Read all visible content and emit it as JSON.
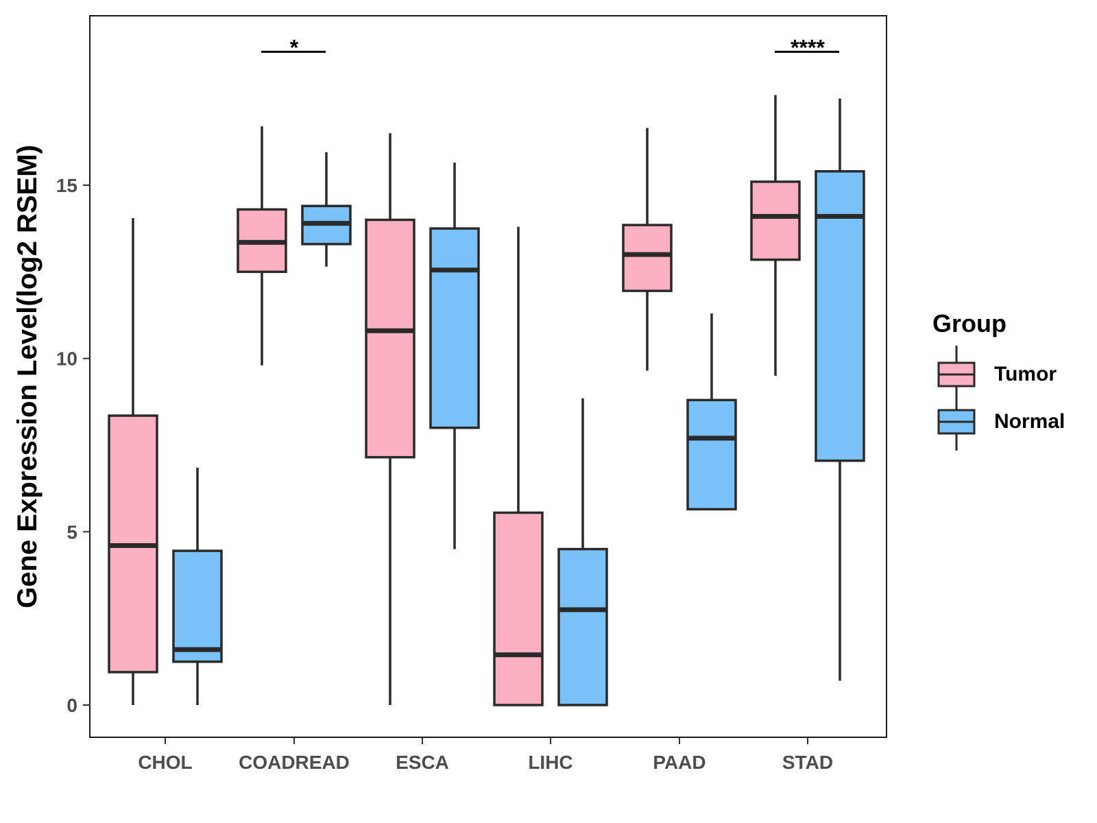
{
  "chart_data": {
    "type": "boxplot",
    "title": "",
    "xlabel": "",
    "ylabel": "Gene Expression Level(log2 RSEM)",
    "ylim": [
      -0.9,
      19.9
    ],
    "yticks": [
      0,
      5,
      10,
      15
    ],
    "grid": false,
    "categories": [
      "CHOL",
      "COADREAD",
      "ESCA",
      "LIHC",
      "PAAD",
      "STAD"
    ],
    "legend": {
      "title": "Group",
      "position": "right",
      "entries": [
        "Tumor",
        "Normal"
      ]
    },
    "colors": {
      "Tumor": "#FBB0C2",
      "Normal": "#79C1F8",
      "outline": "#2a2a2a"
    },
    "series": [
      {
        "name": "Tumor",
        "boxes": [
          {
            "category": "CHOL",
            "min": 0.0,
            "q1": 0.95,
            "median": 4.6,
            "q3": 8.35,
            "max": 14.05
          },
          {
            "category": "COADREAD",
            "min": 9.8,
            "q1": 12.5,
            "median": 13.35,
            "q3": 14.3,
            "max": 16.7
          },
          {
            "category": "ESCA",
            "min": 0.0,
            "q1": 7.15,
            "median": 10.8,
            "q3": 14.0,
            "max": 16.5
          },
          {
            "category": "LIHC",
            "min": 0.0,
            "q1": 0.0,
            "median": 1.45,
            "q3": 5.55,
            "max": 13.8
          },
          {
            "category": "PAAD",
            "min": 9.65,
            "q1": 11.95,
            "median": 13.0,
            "q3": 13.85,
            "max": 16.65
          },
          {
            "category": "STAD",
            "min": 9.5,
            "q1": 12.85,
            "median": 14.1,
            "q3": 15.1,
            "max": 17.6
          }
        ]
      },
      {
        "name": "Normal",
        "boxes": [
          {
            "category": "CHOL",
            "min": 0.0,
            "q1": 1.25,
            "median": 1.6,
            "q3": 4.45,
            "max": 6.85
          },
          {
            "category": "COADREAD",
            "min": 12.65,
            "q1": 13.3,
            "median": 13.9,
            "q3": 14.4,
            "max": 15.95
          },
          {
            "category": "ESCA",
            "min": 4.5,
            "q1": 8.0,
            "median": 12.55,
            "q3": 13.75,
            "max": 15.65
          },
          {
            "category": "LIHC",
            "min": 0.0,
            "q1": 0.0,
            "median": 2.75,
            "q3": 4.5,
            "max": 8.85
          },
          {
            "category": "PAAD",
            "min": null,
            "q1": 5.65,
            "median": 7.7,
            "q3": 8.8,
            "max": 11.3
          },
          {
            "category": "STAD",
            "min": 0.7,
            "q1": 7.05,
            "median": 14.1,
            "q3": 15.4,
            "max": 17.5
          }
        ]
      }
    ],
    "annotations": [
      {
        "category": "COADREAD",
        "label": "*",
        "y": 18.85
      },
      {
        "category": "STAD",
        "label": "****",
        "y": 18.85
      }
    ]
  }
}
